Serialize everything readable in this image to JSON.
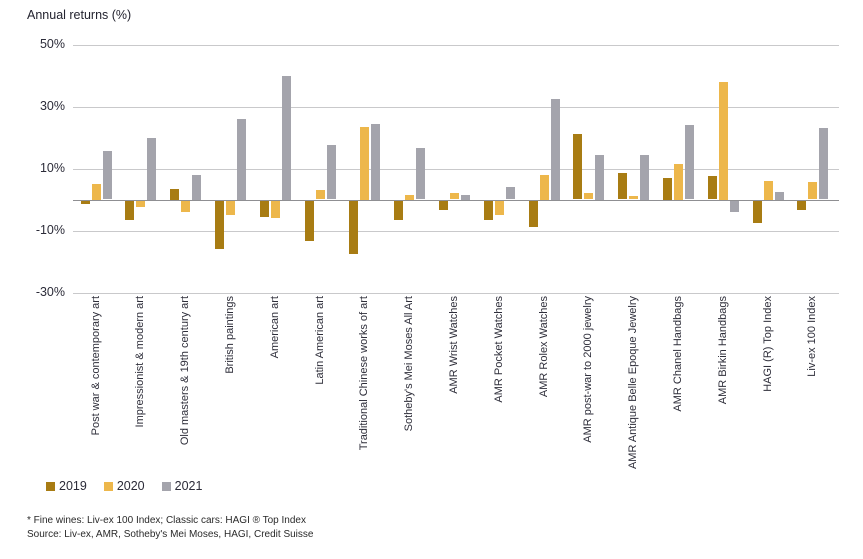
{
  "header": {
    "title": "Annual returns (%)"
  },
  "chart_data": {
    "type": "bar",
    "title": "Annual returns (%)",
    "categories": [
      "Post war & contemporary art",
      "Impressionist & modern art",
      "Old masters & 19th century art",
      "British paintings",
      "American art",
      "Latin American art",
      "Traditional Chinese works of art",
      "Sotheby's Mei Moses All Art",
      "AMR Wrist Watches",
      "AMR Pocket Watches",
      "AMR Rolex Watches",
      "AMR post-war to 2000 jewelry",
      "AMR Antique Belle Epoque Jewelry",
      "AMR Chanel Handbags",
      "AMR Birkin Handbags",
      "HAGI (R) Top Index",
      "Liv-ex 100 Index"
    ],
    "series": [
      {
        "name": "2019",
        "color": "#a87c13",
        "values": [
          -1,
          -6,
          3.5,
          -15.5,
          -5,
          -13,
          -17,
          -6,
          -3,
          -6,
          -8.5,
          21,
          8.5,
          7,
          7.5,
          -7,
          -3
        ]
      },
      {
        "name": "2020",
        "color": "#edb74b",
        "values": [
          5,
          -2,
          -3.5,
          -4.5,
          -5.5,
          3,
          23.5,
          1.5,
          2,
          -4.5,
          8,
          2,
          1,
          11.5,
          38,
          6,
          5.5
        ]
      },
      {
        "name": "2021",
        "color": "#a4a4ac",
        "values": [
          15.5,
          20,
          8,
          26,
          40,
          17.5,
          24.5,
          16.5,
          1.5,
          4,
          32.5,
          14.5,
          14.5,
          24,
          -3.5,
          2.5,
          23
        ]
      }
    ],
    "ylabel": "Annual returns (%)",
    "ylim": [
      -30,
      50
    ],
    "yticks": [
      {
        "value": 50,
        "label": "50%"
      },
      {
        "value": 30,
        "label": "30%"
      },
      {
        "value": 10,
        "label": "10%"
      },
      {
        "value": -10,
        "label": "-10%"
      },
      {
        "value": -30,
        "label": "-30%"
      }
    ],
    "grid": "horizontal",
    "legend_position": "bottom-left"
  },
  "footnotes": {
    "line1": "* Fine wines: Liv-ex 100 Index; Classic cars: HAGI ® Top Index",
    "line2": "Source: Liv-ex, AMR, Sotheby's Mei Moses, HAGI, Credit Suisse"
  },
  "colors": {
    "gridline": "#c9c9cb",
    "zero_axis": "#8f8f92",
    "text": "#23232f",
    "background": "#ffffff"
  }
}
